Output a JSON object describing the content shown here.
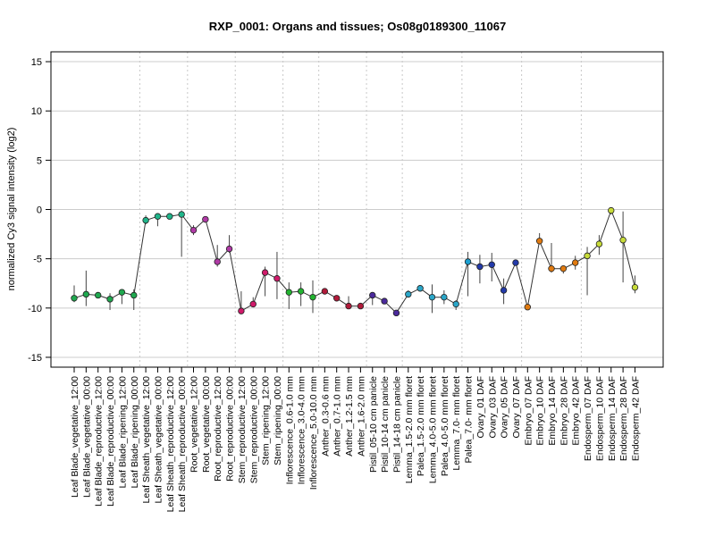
{
  "chart_data": {
    "type": "line",
    "title": "RXP_0001: Organs and tissues; Os08g0189300_11067",
    "xlabel": "",
    "ylabel": "normalized Cy3 signal intensity (log2)",
    "ylim": [
      -16,
      16
    ],
    "yticks": [
      -15,
      -10,
      -5,
      0,
      5,
      10,
      15
    ],
    "grid": true,
    "legend": "none",
    "categories": [
      "Leaf Blade_vegetative_12:00",
      "Leaf Blade_vegetative_00:00",
      "Leaf Blade_reproductive_12:00",
      "Leaf Blade_reproductive_00:00",
      "Leaf Blade_ripening_12:00",
      "Leaf Blade_ripening_00:00",
      "Leaf Sheath_vegetative_12:00",
      "Leaf Sheath_vegetative_00:00",
      "Leaf Sheath_reproductive_12:00",
      "Leaf Sheath_reproductive_00:00",
      "Root_vegetative_12:00",
      "Root_vegetative_00:00",
      "Root_reproductive_12:00",
      "Root_reproductive_00:00",
      "Stem_reproductive_12:00",
      "Stem_reproductive_00:00",
      "Stem_ripening_12:00",
      "Stem_ripening_00:00",
      "Inflorescence_0.6-1.0 mm",
      "Inflorescence_3.0-4.0 mm",
      "Inflorescence_5.0-10.0 mm",
      "Anther_0.3-0.6 mm",
      "Anther_0.7-1.0 mm",
      "Anther_1.2-1.5 mm",
      "Anther_1.6-2.0 mm",
      "Pistil_05-10 cm panicle",
      "Pistil_10-14 cm panicle",
      "Pistil_14-18 cm panicle",
      "Lemma_1.5-2.0 mm floret",
      "Palea_1.5-2.0 mm floret",
      "Lemma_4.0-5.0 mm floret",
      "Palea_4.0-5.0 mm floret",
      "Lemma_7.0- mm floret",
      "Palea_7.0- mm floret",
      "Ovary_01 DAF",
      "Ovary_03 DAF",
      "Ovary_05 DAF",
      "Ovary_07 DAF",
      "Embryo_07 DAF",
      "Embryo_10 DAF",
      "Embryo_14 DAF",
      "Embryo_28 DAF",
      "Embryo_42 DAF",
      "Endosperm_07 DAF",
      "Endosperm_10 DAF",
      "Endosperm_14 DAF",
      "Endosperm_28 DAF",
      "Endosperm_42 DAF"
    ],
    "series": [
      {
        "values": [
          -9.0,
          -8.6,
          -8.7,
          -9.1,
          -8.4,
          -8.7,
          -1.1,
          -0.7,
          -0.7,
          -0.5,
          -2.1,
          -1.0,
          -5.3,
          -4.0,
          -10.3,
          -9.6,
          -6.4,
          -7.0,
          -8.4,
          -8.3,
          -8.9,
          -8.3,
          -9.0,
          -9.8,
          -9.8,
          -8.7,
          -9.3,
          -10.5,
          -8.6,
          -8.0,
          -8.9,
          -8.9,
          -9.6,
          -5.3,
          -5.8,
          -5.6,
          -8.2,
          -5.4,
          -9.9,
          -3.2,
          -6.0,
          -6.0,
          -5.4,
          -4.7,
          -3.5,
          -0.1,
          -3.1,
          -7.9
        ],
        "low": [
          -9.4,
          -9.8,
          -9.0,
          -10.2,
          -9.6,
          -10.2,
          -1.5,
          -1.7,
          -1.0,
          -4.8,
          -2.6,
          -1.3,
          -5.8,
          -4.4,
          -10.5,
          -9.9,
          -8.8,
          -9.1,
          -10.1,
          -9.8,
          -10.5,
          -8.6,
          -9.3,
          -10.0,
          -10.0,
          -9.7,
          -9.6,
          -10.8,
          -8.9,
          -8.3,
          -10.5,
          -9.6,
          -10.2,
          -8.8,
          -7.5,
          -7.3,
          -9.6,
          -5.7,
          -10.2,
          -3.5,
          -6.4,
          -6.5,
          -6.1,
          -8.7,
          -4.6,
          -0.5,
          -7.4,
          -8.5
        ],
        "high": [
          -7.7,
          -6.2,
          -8.4,
          -8.5,
          -8.2,
          -8.1,
          -0.6,
          -0.4,
          -0.4,
          -0.1,
          -1.6,
          -0.8,
          -3.6,
          -2.6,
          -8.3,
          -8.9,
          -5.8,
          -4.3,
          -7.4,
          -7.4,
          -7.2,
          -8.0,
          -8.7,
          -8.8,
          -9.6,
          -8.4,
          -9.0,
          -10.2,
          -8.2,
          -7.7,
          -7.6,
          -8.2,
          -9.2,
          -4.3,
          -4.6,
          -4.4,
          -7.0,
          -5.1,
          -9.6,
          -2.4,
          -3.4,
          -5.8,
          -4.7,
          -3.8,
          -2.6,
          0.2,
          -0.2,
          -6.7
        ],
        "colors": [
          "#1fa84f",
          "#1fa84f",
          "#1fa84f",
          "#1fa84f",
          "#1fa84f",
          "#1fa84f",
          "#1fb58a",
          "#1fb58a",
          "#1fb58a",
          "#1fb58a",
          "#b03aa6",
          "#b03aa6",
          "#b03aa6",
          "#b03aa6",
          "#d01a6a",
          "#d01a6a",
          "#d01a6a",
          "#d01a6a",
          "#22b430",
          "#22b430",
          "#22b430",
          "#b01a3a",
          "#b01a3a",
          "#b01a3a",
          "#b01a3a",
          "#4b2a9c",
          "#4b2a9c",
          "#4b2a9c",
          "#2aa6c8",
          "#2aa6c8",
          "#2aa6c8",
          "#2aa6c8",
          "#2aa6c8",
          "#1aa0d2",
          "#233aaa",
          "#233aaa",
          "#233aaa",
          "#233aaa",
          "#e07a10",
          "#e07a10",
          "#e07a10",
          "#e07a10",
          "#e07a10",
          "#c8dc3a",
          "#c8dc3a",
          "#c8dc3a",
          "#c8dc3a",
          "#c8dc3a"
        ]
      }
    ],
    "group_separators_after": [
      5,
      9,
      13,
      17,
      20,
      24,
      27,
      32,
      37,
      42
    ]
  }
}
